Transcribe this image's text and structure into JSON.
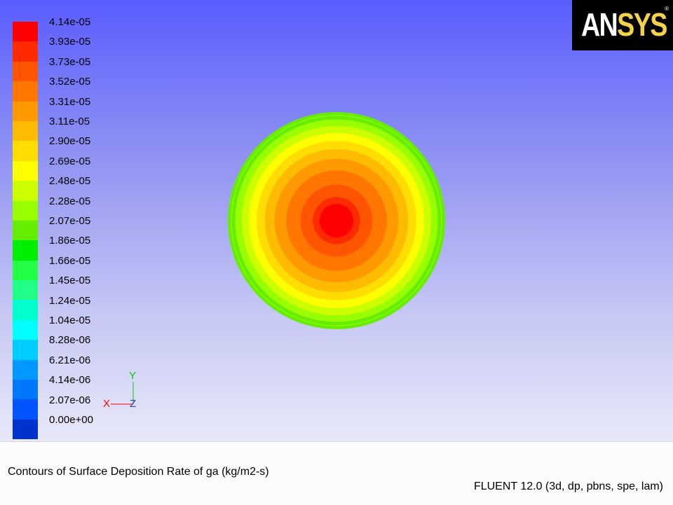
{
  "logo": {
    "text_a": "AN",
    "text_b": "SYS",
    "reg": "®"
  },
  "legend": {
    "labels": [
      "4.14e-05",
      "3.93e-05",
      "3.73e-05",
      "3.52e-05",
      "3.31e-05",
      "3.11e-05",
      "2.90e-05",
      "2.69e-05",
      "2.48e-05",
      "2.28e-05",
      "2.07e-05",
      "1.86e-05",
      "1.66e-05",
      "1.45e-05",
      "1.24e-05",
      "1.04e-05",
      "8.28e-06",
      "6.21e-06",
      "4.14e-06",
      "2.07e-06",
      "0.00e+00"
    ],
    "colors": [
      "#ff0000",
      "#ff2a00",
      "#ff5500",
      "#ff7700",
      "#ff9900",
      "#ffbb00",
      "#ffdd00",
      "#ffff00",
      "#ccff00",
      "#99ff00",
      "#66ee00",
      "#00ee00",
      "#22ff44",
      "#22ff88",
      "#00ffcc",
      "#00ffff",
      "#00ccff",
      "#0099ff",
      "#0077ff",
      "#0055ff",
      "#0033cc"
    ]
  },
  "contour": {
    "ring_colors": [
      "#66ee00",
      "#99ff00",
      "#ccff00",
      "#ffff00",
      "#ffdd00",
      "#ffbb00",
      "#ff9900",
      "#ff7700",
      "#ff5500",
      "#ff2a00",
      "#ff0000"
    ],
    "ring_levels": [
      2.23e-05,
      2.48e-05,
      2.69e-05,
      2.9e-05,
      3.11e-05,
      3.31e-05,
      3.52e-05,
      3.73e-05,
      3.93e-05,
      4.05e-05,
      4.14e-05
    ]
  },
  "axes": {
    "x": "X",
    "y": "Y",
    "z": "Z"
  },
  "info": {
    "caption": "Contours of Surface Deposition Rate of ga (kg/m2-s)",
    "version": "FLUENT 12.0 (3d, dp, pbns, spe, lam)"
  }
}
